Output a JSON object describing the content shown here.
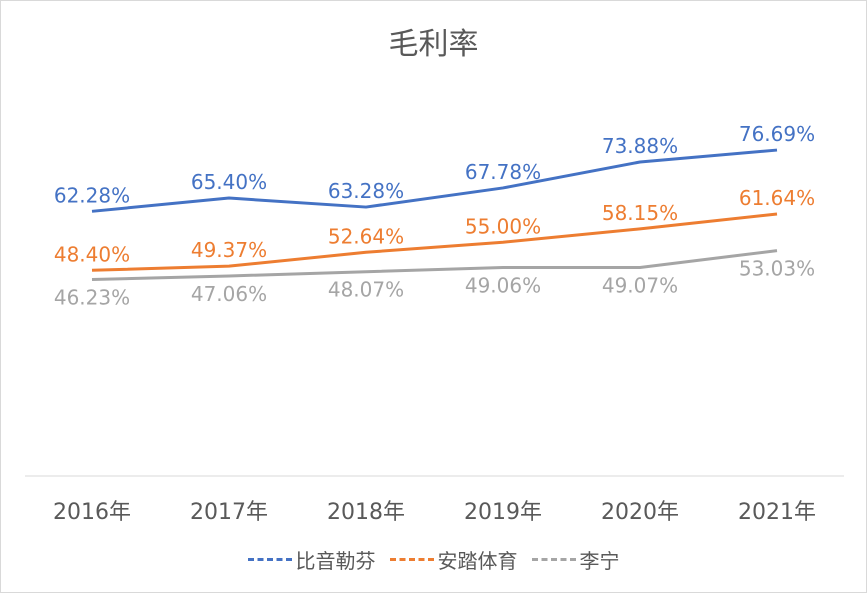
{
  "chart_data": {
    "type": "line",
    "title": "毛利率",
    "categories": [
      "2016年",
      "2017年",
      "2018年",
      "2019年",
      "2020年",
      "2021年"
    ],
    "ylim": [
      0,
      100
    ],
    "grid": false,
    "legend_position": "bottom",
    "series": [
      {
        "name": "比音勒芬",
        "color": "#4472c4",
        "values": [
          62.28,
          65.4,
          63.28,
          67.78,
          73.88,
          76.69
        ],
        "labels": [
          "62.28%",
          "65.40%",
          "63.28%",
          "67.78%",
          "73.88%",
          "76.69%"
        ]
      },
      {
        "name": "安踏体育",
        "color": "#ed7d31",
        "values": [
          48.4,
          49.37,
          52.64,
          55.0,
          58.15,
          61.64
        ],
        "labels": [
          "48.40%",
          "49.37%",
          "52.64%",
          "55.00%",
          "58.15%",
          "61.64%"
        ]
      },
      {
        "name": "李宁",
        "color": "#a5a5a5",
        "values": [
          46.23,
          47.06,
          48.07,
          49.06,
          49.07,
          53.03
        ],
        "labels": [
          "46.23%",
          "47.06%",
          "48.07%",
          "49.06%",
          "49.07%",
          "53.03%"
        ]
      }
    ]
  }
}
